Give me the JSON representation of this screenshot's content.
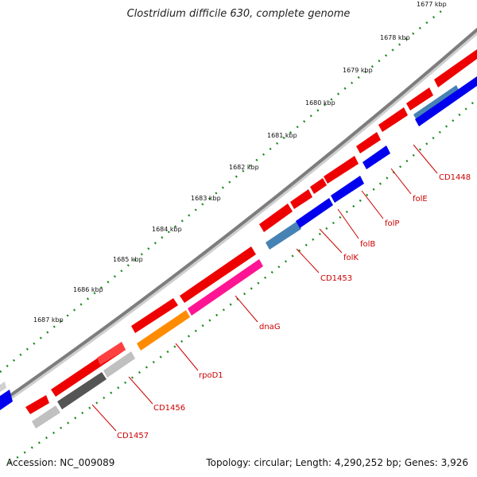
{
  "title": "Clostridium difficile 630, complete genome",
  "footer": {
    "accession": "Accession: NC_009089",
    "info": "Topology: circular; Length: 4,290,252 bp; Genes: 3,926"
  },
  "ruler": {
    "unit": "kbp",
    "labels": [
      "1677 kbp",
      "1678 kbp",
      "1679 kbp",
      "1680 kbp",
      "1681 kbp",
      "1682 kbp",
      "1683 kbp",
      "1684 kbp",
      "1685 kbp",
      "1686 kbp",
      "1687 kbp"
    ]
  },
  "colors": {
    "forward_strand": "#ee0000",
    "reverse_dark_blue": "#0000ee",
    "reverse_steel_blue": "#4682b4",
    "reverse_pink": "#ff1493",
    "reverse_orange": "#ff8c00",
    "reverse_dark_gray": "#555555",
    "reverse_light_gray": "#c0c0c0",
    "backbone": "#888888",
    "ticks": "#118811",
    "labels": "#cc0000"
  },
  "gene_labels": [
    "CD1448",
    "folE",
    "folP",
    "folB",
    "folK",
    "CD1453",
    "dnaG",
    "rpoD1",
    "CD1456",
    "CD1457"
  ]
}
